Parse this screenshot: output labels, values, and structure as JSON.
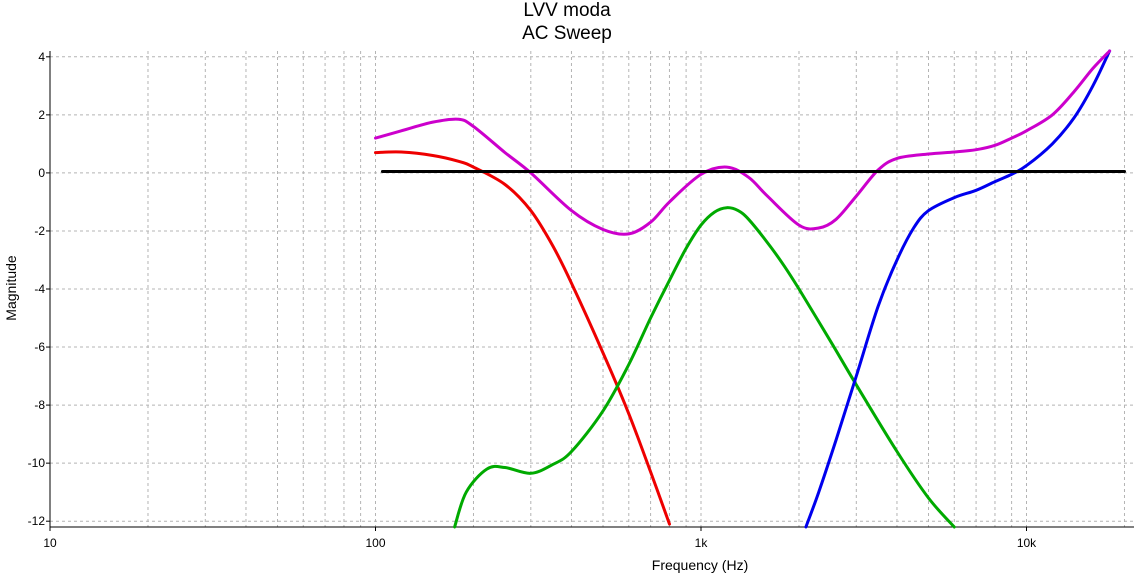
{
  "chart_data": {
    "type": "line",
    "title": "LVV moda",
    "subtitle": "AC Sweep",
    "xlabel": "Frequency (Hz)",
    "ylabel": "Magnitude",
    "x_scale": "log",
    "xlim": [
      10,
      20000
    ],
    "ylim": [
      -12.2,
      4.2
    ],
    "x_tick_labels": [
      {
        "value": 10,
        "label": "10"
      },
      {
        "value": 100,
        "label": "100"
      },
      {
        "value": 1000,
        "label": "1k"
      },
      {
        "value": 10000,
        "label": "10k"
      }
    ],
    "y_ticks": [
      4,
      2,
      0,
      -2,
      -4,
      -6,
      -8,
      -10,
      -12
    ],
    "grid": true,
    "grid_style": "dashed",
    "legend": "none",
    "series": [
      {
        "color": "#ee0000",
        "x": [
          100,
          120,
          150,
          180,
          200,
          250,
          300,
          350,
          400,
          500,
          600,
          700,
          800
        ],
        "y": [
          0.7,
          0.72,
          0.6,
          0.4,
          0.2,
          -0.4,
          -1.3,
          -2.5,
          -3.8,
          -6.2,
          -8.3,
          -10.3,
          -12.1
        ]
      },
      {
        "color": "#00aa00",
        "x": [
          175,
          190,
          220,
          250,
          300,
          350,
          400,
          500,
          600,
          700,
          800,
          900,
          1000,
          1100,
          1200,
          1300,
          1400,
          1600,
          1800,
          2000,
          2500,
          3000,
          4000,
          5000,
          6000
        ],
        "y": [
          -12.2,
          -11.0,
          -10.2,
          -10.15,
          -10.35,
          -10.05,
          -9.6,
          -8.2,
          -6.6,
          -5.0,
          -3.7,
          -2.6,
          -1.8,
          -1.35,
          -1.2,
          -1.3,
          -1.6,
          -2.4,
          -3.2,
          -4.0,
          -5.8,
          -7.3,
          -9.6,
          -11.2,
          -12.2
        ]
      },
      {
        "color": "#0000ee",
        "x": [
          2100,
          2300,
          2600,
          3000,
          3500,
          4000,
          4500,
          5000,
          6000,
          7000,
          8000,
          9000,
          10000,
          12000,
          14000,
          16000,
          18000
        ],
        "y": [
          -12.2,
          -11.0,
          -9.2,
          -7.0,
          -4.6,
          -3.0,
          -1.9,
          -1.3,
          -0.85,
          -0.6,
          -0.3,
          -0.05,
          0.25,
          1.0,
          1.9,
          3.0,
          4.2
        ]
      },
      {
        "color": "#cc00cc",
        "x": [
          100,
          120,
          150,
          180,
          200,
          250,
          300,
          400,
          500,
          600,
          700,
          800,
          1000,
          1200,
          1400,
          1600,
          2000,
          2300,
          2600,
          3000,
          3500,
          4000,
          5000,
          6000,
          7000,
          8000,
          9000,
          10000,
          12000,
          14000,
          16000,
          18000
        ],
        "y": [
          1.2,
          1.45,
          1.75,
          1.85,
          1.6,
          0.7,
          0.0,
          -1.3,
          -1.95,
          -2.1,
          -1.7,
          -1.0,
          -0.05,
          0.2,
          -0.15,
          -0.8,
          -1.8,
          -1.9,
          -1.6,
          -0.8,
          0.1,
          0.5,
          0.65,
          0.72,
          0.8,
          0.95,
          1.2,
          1.45,
          2.0,
          2.8,
          3.6,
          4.2
        ]
      },
      {
        "color": "#000000",
        "x": [
          105,
          20000
        ],
        "y": [
          0.05,
          0.05
        ]
      }
    ]
  }
}
